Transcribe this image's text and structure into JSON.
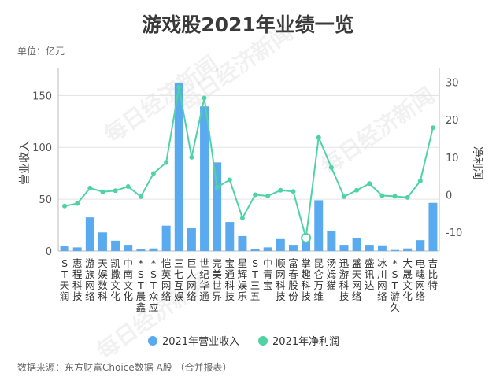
{
  "title": "游戏股2021年业绩一览",
  "unit_label": "单位：亿元",
  "source": "数据来源：东方财富Choice数据 A股 （合并报表）",
  "watermark": "每日经济新闻",
  "colors": {
    "revenue": "#5aaaf0",
    "profit": "#4fd3a4",
    "highlight_point": "#4fd3a4"
  },
  "chart_data": {
    "type": "bar+line",
    "title": "游戏股2021年业绩一览",
    "ylabel": "营业收入",
    "y2label": "净利润",
    "ylim": [
      0,
      170
    ],
    "y2lim": [
      -15,
      32
    ],
    "yticks": [
      0,
      50,
      100,
      150
    ],
    "y2ticks": [
      -10,
      0,
      10,
      20,
      30
    ],
    "grid": true,
    "legend_position": "bottom",
    "categories": [
      "ST天润",
      "惠程科技",
      "游族网络",
      "天娱数科",
      "凯撒文化",
      "中南文化",
      "*ST晨鑫",
      "*ST众应",
      "恺英网络",
      "三七互娱",
      "巨人网络",
      "世纪华通",
      "完美世界",
      "宝通科技",
      "星辉娱乐",
      "ST三五",
      "中青宝",
      "顺网科技",
      "富春股份",
      "掌趣科技",
      "昆仑万维",
      "汤姆猫",
      "迅游科技",
      "盛天网络",
      "盛讯达",
      "冰川网络",
      "*ST游久",
      "大晟文化",
      "电魂网络",
      "吉比特"
    ],
    "series": [
      {
        "name": "2021年营业收入",
        "type": "bar",
        "values": [
          4.5,
          3.5,
          32.5,
          18,
          10,
          6,
          1.5,
          2.5,
          24.5,
          162.5,
          22,
          139.5,
          85.5,
          28,
          14.5,
          2,
          3.5,
          11.5,
          6,
          16.5,
          49,
          19.5,
          6,
          12.5,
          6,
          5.5,
          1,
          2.5,
          10.5,
          46.5
        ]
      },
      {
        "name": "2021年净利润",
        "type": "line",
        "values": [
          -3,
          -2.3,
          1.8,
          0.8,
          1.1,
          2.2,
          -0.5,
          5.7,
          8.6,
          28.7,
          10,
          25.8,
          2,
          4,
          -6.2,
          0,
          -0.3,
          1.2,
          0.9,
          -11.5,
          15.3,
          7.3,
          -0.5,
          1.2,
          3,
          -0.2,
          -0.4,
          -0.7,
          3.7,
          17.9
        ]
      }
    ],
    "highlight_index": 19
  }
}
